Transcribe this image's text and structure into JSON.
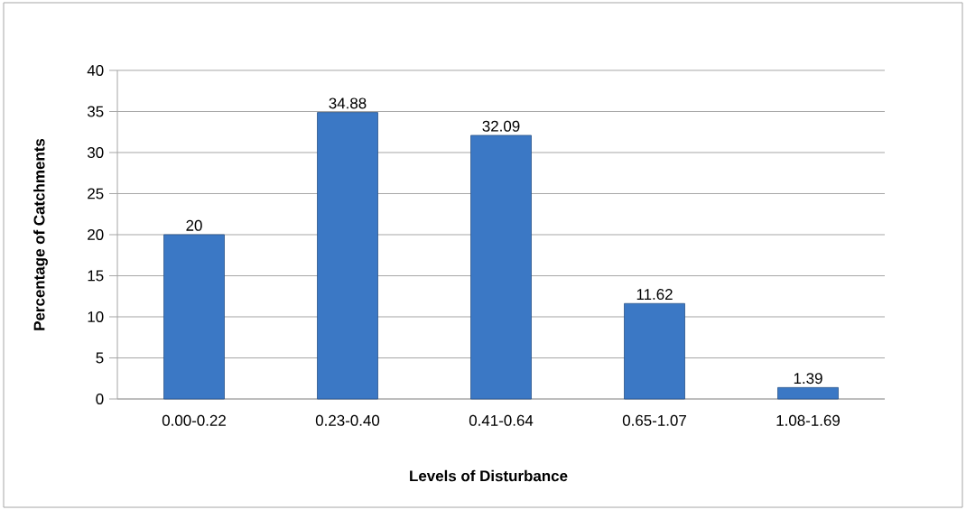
{
  "chart_data": {
    "type": "bar",
    "xlabel": "Levels of Disturbance",
    "ylabel": "Percentage of Catchments",
    "categories": [
      "0.00-0.22",
      "0.23-0.40",
      "0.41-0.64",
      "0.65-1.07",
      "1.08-1.69"
    ],
    "values": [
      20,
      34.88,
      32.09,
      11.62,
      1.39
    ],
    "color": "#3b78c5",
    "ylim": [
      0,
      40
    ],
    "yticks": [
      0,
      5,
      10,
      15,
      20,
      25,
      30,
      35,
      40
    ],
    "grid": "y",
    "data_labels": true
  }
}
